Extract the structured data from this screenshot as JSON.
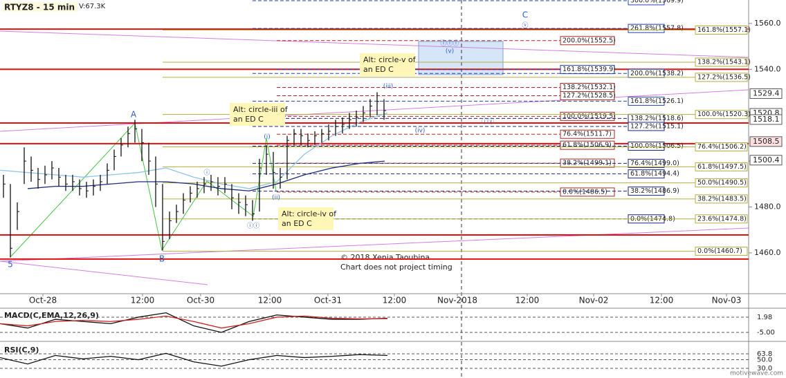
{
  "chart_data": [
    {
      "type": "ohlc",
      "title": "RTYZ8 - 15 min",
      "subtitle": "V:67.3K",
      "x": [
        2.5,
        7.5,
        12.5,
        17.5,
        22.5,
        27.5,
        32.5,
        37.5,
        42.5,
        47.5,
        52.5,
        57.5,
        62.5,
        67.5,
        72.5,
        77.5,
        82.5,
        87.5,
        92.5,
        97.5,
        102.5,
        107.5,
        112.5,
        117.5,
        122.5,
        127.5,
        132.5,
        137.5,
        142.5,
        147.5,
        152.5,
        157.5,
        162.5,
        167.5,
        172.5,
        177.5,
        182.5,
        187.5,
        192.5,
        197.5,
        202.5,
        207.5,
        212.5,
        217.5,
        222.5,
        227.5,
        232.5,
        237.5,
        242.5,
        247.5,
        252.5,
        257.5,
        262.5,
        267.5,
        272.5,
        277.5
      ],
      "high": [
        1494,
        1490,
        1482,
        1506,
        1502,
        1497,
        1498,
        1500,
        1497,
        1494,
        1494,
        1492,
        1491,
        1492,
        1494,
        1499,
        1505,
        1510,
        1515,
        1518,
        1514,
        1508,
        1502,
        1490,
        1478,
        1481,
        1486,
        1489,
        1491,
        1493,
        1494,
        1493,
        1493,
        1490,
        1486,
        1485,
        1483,
        1501,
        1507,
        1504,
        1497,
        1511,
        1514,
        1514,
        1512,
        1513,
        1514,
        1516,
        1518,
        1519,
        1521,
        1522,
        1524,
        1527,
        1530,
        1527
      ],
      "low": [
        1484,
        1458,
        1470,
        1490,
        1491,
        1488,
        1490,
        1492,
        1489,
        1487,
        1487,
        1485,
        1484,
        1485,
        1487,
        1490,
        1496,
        1502,
        1506,
        1508,
        1500,
        1494,
        1480,
        1461,
        1466,
        1473,
        1477,
        1482,
        1484,
        1486,
        1487,
        1485,
        1486,
        1479,
        1477,
        1476,
        1474,
        1478,
        1494,
        1488,
        1488,
        1492,
        1507,
        1507,
        1506,
        1507,
        1508,
        1509,
        1511,
        1512,
        1514,
        1515,
        1517,
        1519,
        1520,
        1518
      ],
      "close": [
        1490,
        1462,
        1478,
        1500,
        1496,
        1492,
        1494,
        1497,
        1493,
        1490,
        1491,
        1488,
        1487,
        1489,
        1491,
        1496,
        1502,
        1507,
        1512,
        1514,
        1508,
        1500,
        1490,
        1465,
        1474,
        1478,
        1483,
        1486,
        1488,
        1490,
        1491,
        1489,
        1490,
        1484,
        1482,
        1481,
        1477,
        1497,
        1503,
        1495,
        1493,
        1509,
        1512,
        1511,
        1509,
        1511,
        1512,
        1513,
        1515,
        1516,
        1518,
        1519,
        1521,
        1524,
        1526,
        1522
      ],
      "bar_color": "#111111",
      "moving_averages": [
        {
          "color": "#8ec5ea",
          "x": [
            0,
            20,
            40,
            60,
            80,
            100,
            120,
            140,
            160,
            180,
            200,
            220,
            240,
            260,
            280
          ],
          "values": [
            1496,
            1495,
            1494,
            1493,
            1494,
            1495,
            1497,
            1493,
            1490,
            1488,
            1491,
            1503,
            1511,
            1517,
            1521
          ]
        },
        {
          "color": "#1a2a80",
          "x": [
            20,
            40,
            60,
            80,
            100,
            120,
            140,
            160,
            180,
            200,
            220,
            240,
            260,
            278
          ],
          "values": [
            1488,
            1489,
            1489,
            1490,
            1491,
            1491,
            1490,
            1488,
            1487,
            1490,
            1494,
            1497,
            1499,
            1500
          ]
        }
      ],
      "xlim": [
        0,
        541
      ],
      "ylim": [
        1442.2,
        1570.2
      ],
      "xticks": [
        {
          "value": 31,
          "label": "Oct-28"
        },
        {
          "value": 103,
          "label": "12:00"
        },
        {
          "value": 145,
          "label": "Oct-30"
        },
        {
          "value": 195,
          "label": "12:00"
        },
        {
          "value": 237,
          "label": "Oct-31"
        },
        {
          "value": 285,
          "label": "12:00"
        },
        {
          "value": 330.5,
          "label": "Nov-2018"
        },
        {
          "value": 381,
          "label": "12:00"
        },
        {
          "value": 429,
          "label": "Nov-02"
        },
        {
          "value": 478,
          "label": "12:00"
        },
        {
          "value": 525,
          "label": "Nov-03"
        }
      ],
      "yticks": [
        {
          "value": 1460,
          "label": "1460.0"
        },
        {
          "value": 1480,
          "label": "1480.0"
        },
        {
          "value": 1500,
          "label": "1500.0"
        },
        {
          "value": 1540,
          "label": "1540.0"
        },
        {
          "value": 1560,
          "label": "1560.0"
        }
      ],
      "price_tags": [
        1529.4,
        1520.8,
        1518.1,
        1508.5,
        1500.4
      ],
      "key_levels": [
        1557.5,
        1540,
        1516.6,
        1507.6,
        1467.8,
        1457.3
      ],
      "key_level_color": "#e01010",
      "level_groups": [
        {
          "levels": [
            {
              "label": "200.0%(1552.5)",
              "value": 1552.5,
              "color": "#b22222"
            },
            {
              "label": "161.8%(1539.9)",
              "value": 1539.9,
              "color": "#2040b0"
            },
            {
              "label": "138.2%(1532.1)",
              "value": 1532.1,
              "color": "#b22222"
            },
            {
              "label": "127.2%(1528.5)",
              "value": 1528.5,
              "color": "#b22222"
            },
            {
              "label": "100.0%(1519.5)",
              "value": 1519.5,
              "color": "#b22222"
            },
            {
              "label": "76.4%(1511.7)",
              "value": 1511.7,
              "color": "#b22222"
            },
            {
              "label": "61.8%(1506.9)",
              "value": 1506.9,
              "color": "#b22222"
            },
            {
              "label": "38.2%(1499.1)",
              "value": 1499.1,
              "color": "#b22222"
            },
            {
              "label": "0.0%(1486.5)",
              "value": 1486.5,
              "color": "#b22222"
            }
          ]
        },
        {
          "levels": [
            {
              "label": "300.0%(1569.9)",
              "value": 1569.9,
              "color": "#2040b0"
            },
            {
              "label": "261.8%(1557.8)",
              "value": 1557.8,
              "color": "#2040b0"
            },
            {
              "label": "200.0%(1538.2)",
              "value": 1538.2,
              "color": "#2040b0"
            },
            {
              "label": "161.8%(1526.1)",
              "value": 1526.1,
              "color": "#2040b0"
            },
            {
              "label": "138.2%(1518.6)",
              "value": 1518.6,
              "color": "#1a237e"
            },
            {
              "label": "127.2%(1515.1)",
              "value": 1515.1,
              "color": "#1a237e"
            },
            {
              "label": "100.0%(1506.5)",
              "value": 1506.5,
              "color": "#1a237e"
            },
            {
              "label": "76.4%(1499.0)",
              "value": 1499.0,
              "color": "#1a237e"
            },
            {
              "label": "61.8%(1494.4)",
              "value": 1494.4,
              "color": "#1a237e"
            },
            {
              "label": "38.2%(1486.9)",
              "value": 1486.9,
              "color": "#1a237e"
            },
            {
              "label": "0.0%(1474.8)",
              "value": 1474.8,
              "color": "#1a237e"
            }
          ]
        },
        {
          "levels": [
            {
              "label": "161.8%(1557.1)",
              "value": 1557.1,
              "color": "#b5ad3c"
            },
            {
              "label": "138.2%(1543.1)",
              "value": 1543.1,
              "color": "#b5ad3c"
            },
            {
              "label": "127.2%(1536.5)",
              "value": 1536.5,
              "color": "#b5ad3c"
            },
            {
              "label": "100.0%(1520.3)",
              "value": 1520.3,
              "color": "#b5ad3c"
            },
            {
              "label": "76.4%(1506.2)",
              "value": 1506.2,
              "color": "#b5ad3c"
            },
            {
              "label": "61.8%(1497.5)",
              "value": 1497.5,
              "color": "#b5ad3c"
            },
            {
              "label": "50.0%(1490.5)",
              "value": 1490.5,
              "color": "#b5ad3c"
            },
            {
              "label": "38.2%(1483.5)",
              "value": 1483.5,
              "color": "#b5ad3c"
            },
            {
              "label": "23.6%(1474.8)",
              "value": 1474.8,
              "color": "#b5ad3c"
            },
            {
              "label": "0.0%(1460.7)",
              "value": 1460.7,
              "color": "#b5ad3c"
            }
          ]
        }
      ],
      "wave_labels": [
        "5",
        "A",
        "B",
        "C",
        "ⓥ",
        "(i)",
        "(ii)",
        "(iii)",
        "(iv)",
        "(v)",
        "ⓘ",
        "ⓘⓘ",
        "ⓘⓘⓘ",
        "ⓘⓥ"
      ],
      "callouts": [
        [
          "Alt: circle-iii of",
          "an ED C"
        ],
        [
          "Alt: circle-v of",
          "an ED C"
        ],
        [
          "Alt: circle-iv of",
          "an ED C"
        ]
      ],
      "footnotes": [
        "© 2018 Xenia Taoubina",
        "Chart does not project timing"
      ],
      "watermark": "motivewave.com"
    },
    {
      "type": "line",
      "title": "MACD(C,EMA,12,26,9)",
      "xlim": [
        0,
        541
      ],
      "ylim": [
        -7.86,
        5.47
      ],
      "yticks": [
        1.98,
        {
          "value": -5,
          "label": "-5.00"
        }
      ],
      "x": [
        0,
        20,
        40,
        60,
        80,
        100,
        120,
        140,
        160,
        180,
        200,
        220,
        240,
        260,
        280
      ],
      "series": [
        {
          "color": "#111111",
          "values": [
            -1,
            -3,
            1,
            0,
            -1,
            2,
            4,
            -2,
            -5,
            0,
            3,
            2,
            1,
            1,
            1.5
          ]
        },
        {
          "color": "#cc2222",
          "values": [
            -1,
            -2,
            0,
            0.5,
            0,
            1,
            2.5,
            0,
            -3,
            -1,
            2,
            2.5,
            1.5,
            1.2,
            1.3
          ]
        }
      ]
    },
    {
      "type": "line",
      "title": "RSI(C,9)",
      "xlim": [
        0,
        541
      ],
      "ylim": [
        17,
        88
      ],
      "yticks": [
        63.8,
        {
          "value": 50,
          "label": "50.0"
        },
        {
          "value": 30,
          "label": "30.0"
        }
      ],
      "x": [
        0,
        20,
        40,
        60,
        80,
        100,
        120,
        140,
        160,
        180,
        200,
        220,
        240,
        260,
        280
      ],
      "series": [
        {
          "color": "#111111",
          "values": [
            55,
            40,
            60,
            52,
            58,
            50,
            65,
            45,
            35,
            50,
            60,
            55,
            58,
            62,
            60
          ]
        }
      ]
    }
  ]
}
